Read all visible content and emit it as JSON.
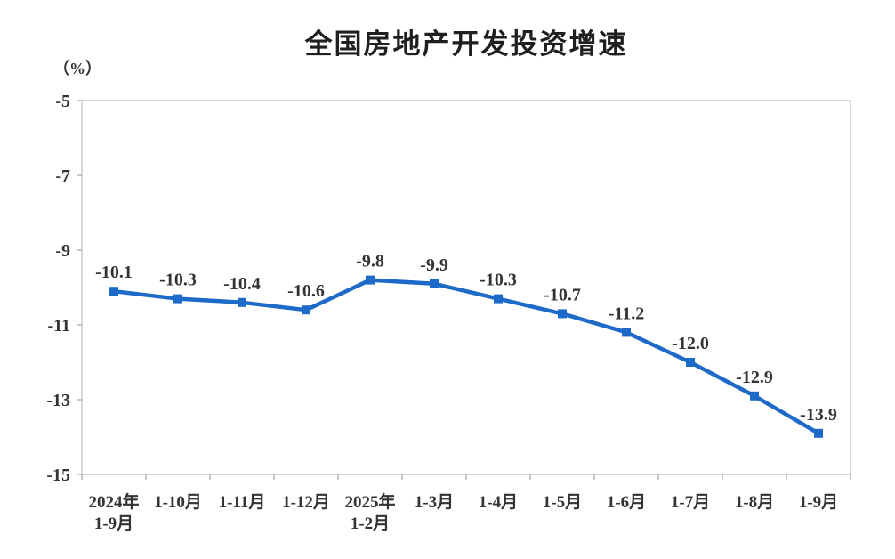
{
  "page": {
    "background": "#ffffff"
  },
  "chart_data": {
    "type": "line",
    "title": "全国房地产开发投资增速",
    "unit_label": "（%）",
    "categories": [
      [
        "2024年",
        "1-9月"
      ],
      [
        "1-10月"
      ],
      [
        "1-11月"
      ],
      [
        "1-12月"
      ],
      [
        "2025年",
        "1-2月"
      ],
      [
        "1-3月"
      ],
      [
        "1-4月"
      ],
      [
        "1-5月"
      ],
      [
        "1-6月"
      ],
      [
        "1-7月"
      ],
      [
        "1-8月"
      ],
      [
        "1-9月"
      ]
    ],
    "series": [
      {
        "name": "全国房地产开发投资增速",
        "values": [
          -10.1,
          -10.3,
          -10.4,
          -10.6,
          -9.8,
          -9.9,
          -10.3,
          -10.7,
          -11.2,
          -12.0,
          -12.9,
          -13.9
        ]
      }
    ],
    "data_labels": [
      "-10.1",
      "-10.3",
      "-10.4",
      "-10.6",
      "-9.8",
      "-9.9",
      "-10.3",
      "-10.7",
      "-11.2",
      "-12.0",
      "-12.9",
      "-13.9"
    ],
    "y_ticks": [
      -5,
      -7,
      -9,
      -11,
      -13,
      -15
    ],
    "y_tick_labels": [
      "-5",
      "-7",
      "-9",
      "-11",
      "-13",
      "-15"
    ],
    "ylim": [
      -15,
      -5
    ],
    "xlabel": "",
    "ylabel": "（%）",
    "grid": false,
    "legend": "none",
    "marker": "square",
    "line_color": "#1e6ac8",
    "label_color": "#333333",
    "axis_color": "#cccccc",
    "tick_color": "#a6a6a6"
  }
}
